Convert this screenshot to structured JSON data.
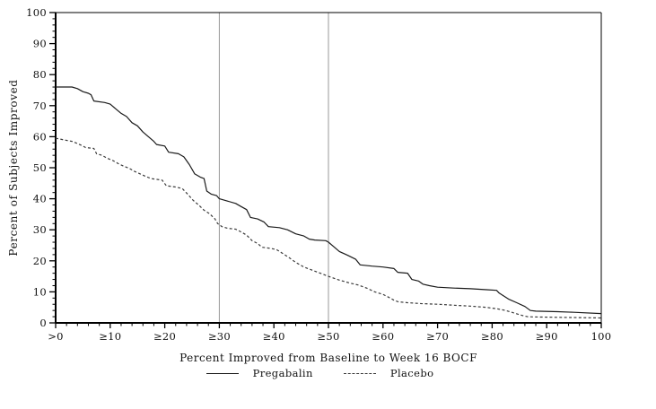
{
  "page": {
    "background": "#ffffff"
  },
  "chart_data": {
    "type": "line",
    "title": "",
    "xlabel": "Percent Improved from Baseline to Week 16 BOCF",
    "ylabel": "Percent of Subjects Improved",
    "xlim": [
      0,
      100
    ],
    "ylim": [
      0,
      100
    ],
    "grid": "off",
    "legend_position": "bottom-center",
    "minor_tick_step": 2,
    "x_ticks": [
      {
        "value": 0,
        "label": ">0"
      },
      {
        "value": 10,
        "label": "≥10"
      },
      {
        "value": 20,
        "label": "≥20"
      },
      {
        "value": 30,
        "label": "≥30"
      },
      {
        "value": 40,
        "label": "≥40"
      },
      {
        "value": 50,
        "label": "≥50"
      },
      {
        "value": 60,
        "label": "≥60"
      },
      {
        "value": 70,
        "label": "≥70"
      },
      {
        "value": 80,
        "label": "≥80"
      },
      {
        "value": 90,
        "label": "≥90"
      },
      {
        "value": 100,
        "label": "100"
      }
    ],
    "y_ticks": [
      {
        "value": 0,
        "label": "0"
      },
      {
        "value": 10,
        "label": "10"
      },
      {
        "value": 20,
        "label": "20"
      },
      {
        "value": 30,
        "label": "30"
      },
      {
        "value": 40,
        "label": "40"
      },
      {
        "value": 50,
        "label": "50"
      },
      {
        "value": 60,
        "label": "60"
      },
      {
        "value": 70,
        "label": "70"
      },
      {
        "value": 80,
        "label": "80"
      },
      {
        "value": 90,
        "label": "90"
      },
      {
        "value": 100,
        "label": "100"
      }
    ],
    "reference_lines_x": [
      30,
      50
    ],
    "reference_line_color": "#999999",
    "axis_color": "#000000",
    "series": [
      {
        "name": "Pregabalin",
        "style": "solid",
        "color": "#1a1a1a",
        "points": [
          [
            0,
            76
          ],
          [
            3,
            76
          ],
          [
            4,
            75.5
          ],
          [
            5,
            74.5
          ],
          [
            6,
            74
          ],
          [
            6.5,
            73.5
          ],
          [
            7,
            71.5
          ],
          [
            9,
            71
          ],
          [
            10,
            70.5
          ],
          [
            11,
            69
          ],
          [
            12,
            67.5
          ],
          [
            13,
            66.5
          ],
          [
            14,
            64.5
          ],
          [
            15,
            63.5
          ],
          [
            16,
            61.5
          ],
          [
            17,
            60
          ],
          [
            18,
            58.5
          ],
          [
            18.5,
            57.5
          ],
          [
            20,
            57
          ],
          [
            20.7,
            55
          ],
          [
            22.5,
            54.5
          ],
          [
            23.5,
            53.5
          ],
          [
            24.5,
            51
          ],
          [
            25.5,
            48
          ],
          [
            26.5,
            47
          ],
          [
            27.2,
            46.5
          ],
          [
            27.7,
            42.5
          ],
          [
            28.5,
            41.5
          ],
          [
            29.5,
            41
          ],
          [
            30,
            40
          ],
          [
            31,
            39.5
          ],
          [
            33,
            38.5
          ],
          [
            34,
            37.5
          ],
          [
            35,
            36.5
          ],
          [
            35.7,
            34
          ],
          [
            37,
            33.5
          ],
          [
            38.2,
            32.5
          ],
          [
            39,
            31
          ],
          [
            41,
            30.7
          ],
          [
            42.5,
            30
          ],
          [
            44,
            28.7
          ],
          [
            45.5,
            28
          ],
          [
            46.5,
            27
          ],
          [
            47.5,
            26.7
          ],
          [
            49.5,
            26.5
          ],
          [
            50,
            26
          ],
          [
            51,
            24.5
          ],
          [
            52,
            23
          ],
          [
            53.5,
            21.8
          ],
          [
            55,
            20.5
          ],
          [
            55.8,
            18.7
          ],
          [
            58,
            18.3
          ],
          [
            60,
            18
          ],
          [
            62,
            17.5
          ],
          [
            62.7,
            16.3
          ],
          [
            64.5,
            16
          ],
          [
            65.3,
            14
          ],
          [
            66.5,
            13.5
          ],
          [
            67.3,
            12.5
          ],
          [
            68.5,
            12
          ],
          [
            70,
            11.5
          ],
          [
            73,
            11.2
          ],
          [
            76,
            11
          ],
          [
            79,
            10.7
          ],
          [
            80.8,
            10.5
          ],
          [
            81.3,
            9.6
          ],
          [
            83,
            7.7
          ],
          [
            84.5,
            6.5
          ],
          [
            86,
            5.3
          ],
          [
            87,
            4
          ],
          [
            88,
            3.8
          ],
          [
            92,
            3.6
          ],
          [
            95,
            3.4
          ],
          [
            100,
            3
          ]
        ]
      },
      {
        "name": "Placebo",
        "style": "dashed",
        "color": "#3a3a3a",
        "points": [
          [
            0,
            59.5
          ],
          [
            1.5,
            59
          ],
          [
            3,
            58.5
          ],
          [
            4,
            57.8
          ],
          [
            5,
            57
          ],
          [
            5.5,
            56.5
          ],
          [
            7,
            56.2
          ],
          [
            7.5,
            54.5
          ],
          [
            8.5,
            54
          ],
          [
            9.5,
            53
          ],
          [
            10.5,
            52.3
          ],
          [
            11.5,
            51.3
          ],
          [
            12.5,
            50.5
          ],
          [
            13.5,
            49.8
          ],
          [
            14.5,
            48.8
          ],
          [
            15.5,
            48
          ],
          [
            16.5,
            47.2
          ],
          [
            17.5,
            46.5
          ],
          [
            19.5,
            46
          ],
          [
            20.3,
            44.2
          ],
          [
            22,
            43.8
          ],
          [
            23.2,
            43.3
          ],
          [
            24.2,
            41.5
          ],
          [
            25.2,
            39.5
          ],
          [
            26.2,
            38
          ],
          [
            27.2,
            36.3
          ],
          [
            28.2,
            35.2
          ],
          [
            29.2,
            33.5
          ],
          [
            29.7,
            32
          ],
          [
            30.5,
            31
          ],
          [
            31.5,
            30.5
          ],
          [
            33,
            30.2
          ],
          [
            34,
            29.3
          ],
          [
            35,
            28.3
          ],
          [
            36,
            26.5
          ],
          [
            37,
            25.6
          ],
          [
            37.8,
            24.4
          ],
          [
            39.5,
            24
          ],
          [
            40.5,
            23.6
          ],
          [
            41.5,
            22.5
          ],
          [
            42.8,
            21
          ],
          [
            44,
            19.5
          ],
          [
            45.5,
            18
          ],
          [
            47,
            17
          ],
          [
            48.5,
            16
          ],
          [
            50,
            15
          ],
          [
            52,
            13.8
          ],
          [
            54,
            12.8
          ],
          [
            55.5,
            12.2
          ],
          [
            57,
            11.2
          ],
          [
            58.5,
            10
          ],
          [
            60,
            9.2
          ],
          [
            61,
            8.3
          ],
          [
            62,
            7.3
          ],
          [
            62.8,
            6.8
          ],
          [
            64.5,
            6.5
          ],
          [
            67,
            6.2
          ],
          [
            70,
            6
          ],
          [
            73,
            5.7
          ],
          [
            76,
            5.4
          ],
          [
            79,
            5
          ],
          [
            81,
            4.5
          ],
          [
            82.5,
            4
          ],
          [
            84,
            3.2
          ],
          [
            85.5,
            2.4
          ],
          [
            86.5,
            2
          ],
          [
            88,
            1.9
          ],
          [
            92,
            1.8
          ],
          [
            96,
            1.7
          ],
          [
            100,
            1.6
          ]
        ]
      }
    ]
  }
}
